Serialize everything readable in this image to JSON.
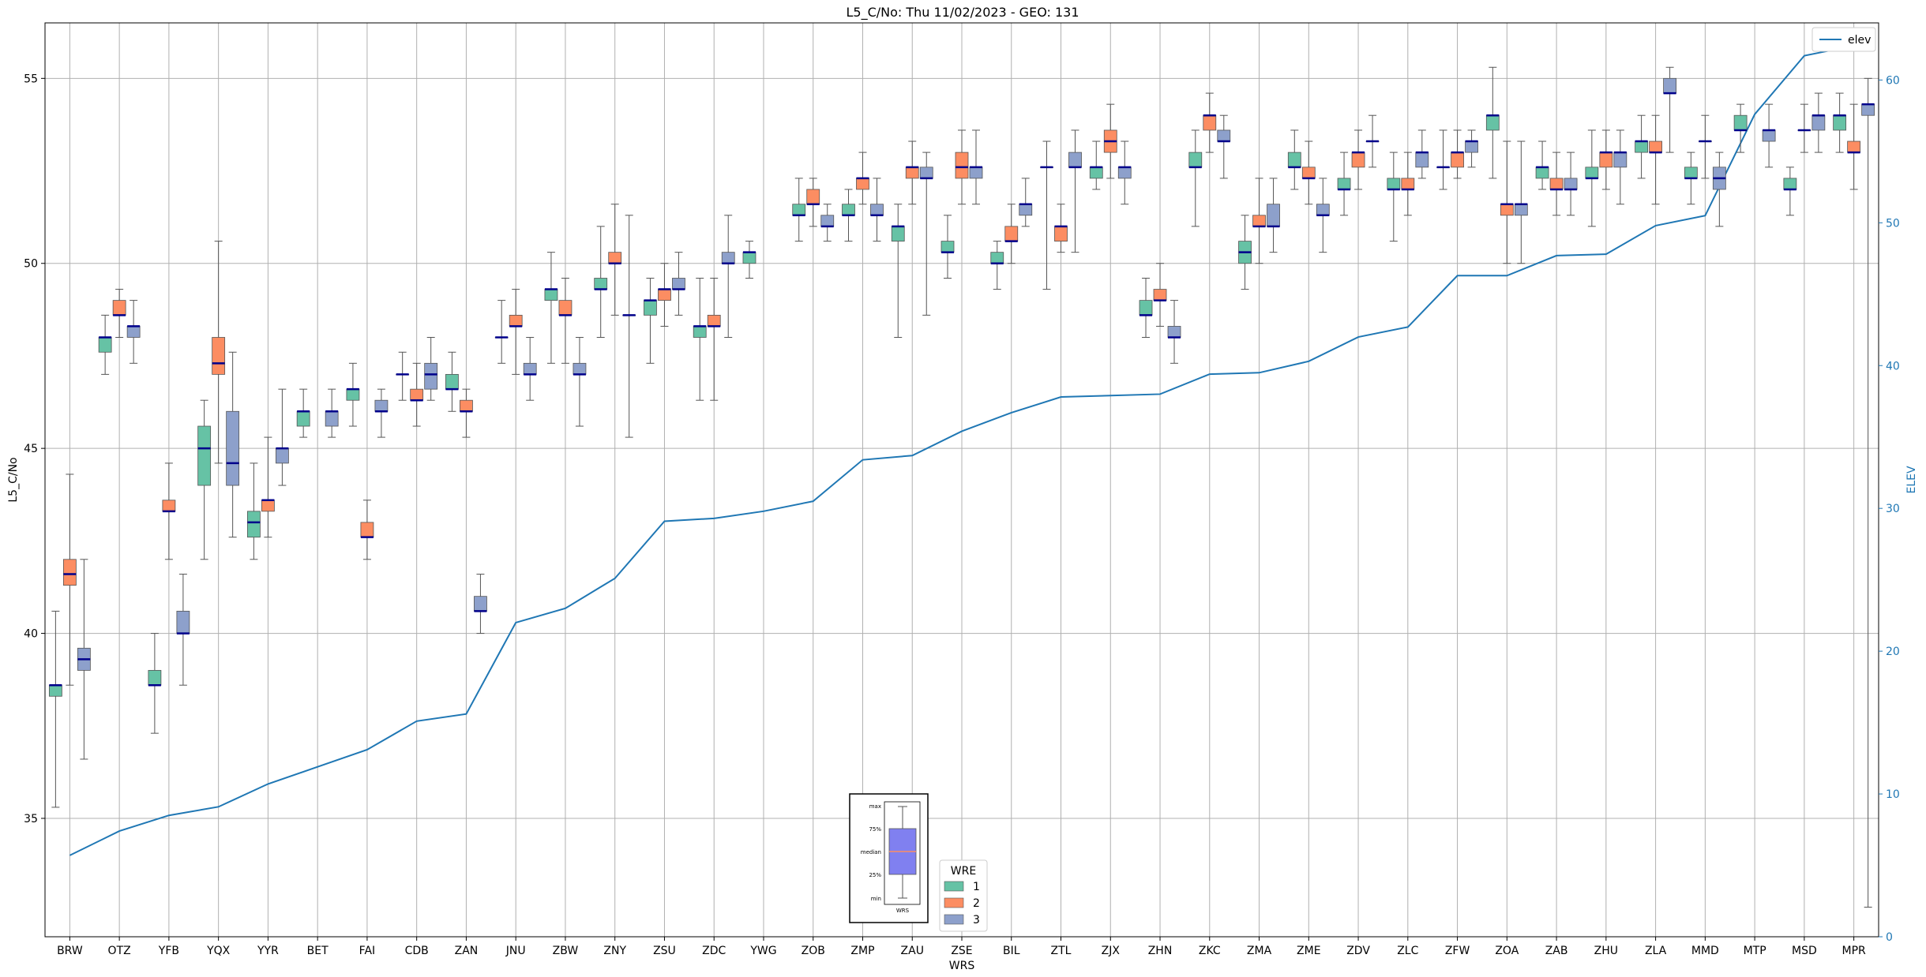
{
  "chart_data": {
    "type": "box",
    "title": "L5_C/No: Thu 11/02/2023 - GEO: 131",
    "xlabel": "WRS",
    "ylabel": "L5_C/No",
    "y2label": "ELEV",
    "ylim": [
      31.8,
      56.5
    ],
    "y2lim": [
      0,
      64
    ],
    "yticks": [
      35,
      40,
      45,
      50,
      55
    ],
    "y2ticks": [
      0,
      10,
      20,
      30,
      40,
      50,
      60
    ],
    "grid": true,
    "categories": [
      "BRW",
      "OTZ",
      "YFB",
      "YQX",
      "YYR",
      "BET",
      "FAI",
      "CDB",
      "ZAN",
      "JNU",
      "ZBW",
      "ZNY",
      "ZSU",
      "ZDC",
      "YWG",
      "ZOB",
      "ZMP",
      "ZAU",
      "ZSE",
      "BIL",
      "ZTL",
      "ZJX",
      "ZHN",
      "ZKC",
      "ZMA",
      "ZME",
      "ZDV",
      "ZLC",
      "ZFW",
      "ZOA",
      "ZAB",
      "ZHU",
      "ZLA",
      "MMD",
      "MTP",
      "MSD",
      "MPR"
    ],
    "legend": {
      "title": "WRE",
      "entries": [
        "1",
        "2",
        "3"
      ],
      "placement": "bottom-center"
    },
    "legend2": {
      "entries": [
        "elev"
      ],
      "placement": "top-right"
    },
    "colors": {
      "wre1": "#66c2a5",
      "wre2": "#fc8d62",
      "wre3": "#8da0cb",
      "elev": "#1f77b4",
      "median": "#00008b"
    },
    "series": [
      {
        "name": "1",
        "boxes": [
          [
            0,
            35.3,
            38.3,
            38.6,
            38.6,
            40.6
          ],
          [
            1,
            47.0,
            47.6,
            48.0,
            48.0,
            48.6
          ],
          [
            2,
            37.3,
            38.6,
            38.6,
            39.0,
            40.0
          ],
          [
            3,
            42.0,
            44.0,
            45.0,
            45.6,
            46.3
          ],
          [
            4,
            42.0,
            42.6,
            43.0,
            43.3,
            44.6
          ],
          [
            5,
            45.3,
            45.6,
            46.0,
            46.0,
            46.6
          ],
          [
            6,
            45.6,
            46.3,
            46.6,
            46.6,
            47.3
          ],
          [
            7,
            46.3,
            47.0,
            47.0,
            47.0,
            47.6
          ],
          [
            8,
            46.0,
            46.6,
            46.6,
            47.0,
            47.6
          ],
          [
            9,
            47.3,
            48.0,
            48.0,
            48.0,
            49.0
          ],
          [
            10,
            47.3,
            49.0,
            49.3,
            49.3,
            50.3
          ],
          [
            11,
            48.0,
            49.3,
            49.3,
            49.6,
            51.0
          ],
          [
            12,
            47.3,
            48.6,
            49.0,
            49.0,
            49.6
          ],
          [
            13,
            46.3,
            48.0,
            48.3,
            48.3,
            49.6
          ],
          [
            14,
            49.6,
            50.0,
            50.3,
            50.3,
            50.6
          ],
          [
            15,
            50.6,
            51.3,
            51.3,
            51.6,
            52.3
          ],
          [
            16,
            50.6,
            51.3,
            51.3,
            51.6,
            52.0
          ],
          [
            17,
            48.0,
            50.6,
            51.0,
            51.0,
            51.6
          ],
          [
            18,
            49.6,
            50.3,
            50.3,
            50.6,
            51.3
          ],
          [
            19,
            49.3,
            50.0,
            50.0,
            50.3,
            50.6
          ],
          [
            20,
            49.3,
            52.6,
            52.6,
            52.6,
            53.3
          ],
          [
            21,
            52.0,
            52.3,
            52.6,
            52.6,
            53.3
          ],
          [
            22,
            48.0,
            48.6,
            48.6,
            49.0,
            49.6
          ],
          [
            23,
            51.0,
            52.6,
            52.6,
            53.0,
            53.6
          ],
          [
            24,
            49.3,
            50.0,
            50.3,
            50.6,
            51.3
          ],
          [
            25,
            52.0,
            52.6,
            52.6,
            53.0,
            53.6
          ],
          [
            26,
            51.3,
            52.0,
            52.0,
            52.3,
            53.0
          ],
          [
            27,
            50.6,
            52.0,
            52.0,
            52.3,
            53.0
          ],
          [
            28,
            52.0,
            52.6,
            52.6,
            52.6,
            53.6
          ],
          [
            29,
            52.3,
            53.6,
            54.0,
            54.0,
            55.3
          ],
          [
            30,
            52.0,
            52.3,
            52.6,
            52.6,
            53.3
          ],
          [
            31,
            51.0,
            52.3,
            52.3,
            52.6,
            53.6
          ],
          [
            32,
            52.3,
            53.0,
            53.3,
            53.3,
            54.0
          ],
          [
            33,
            51.6,
            52.3,
            52.3,
            52.6,
            53.0
          ],
          [
            34,
            53.0,
            53.6,
            53.6,
            54.0,
            54.3
          ],
          [
            35,
            51.3,
            52.0,
            52.0,
            52.3,
            52.6
          ],
          [
            36,
            53.0,
            53.6,
            54.0,
            54.0,
            54.6
          ]
        ]
      },
      {
        "name": "2",
        "boxes": [
          [
            0,
            38.6,
            41.3,
            41.6,
            42.0,
            44.3
          ],
          [
            1,
            48.0,
            48.6,
            48.6,
            49.0,
            49.3
          ],
          [
            2,
            42.0,
            43.3,
            43.3,
            43.6,
            44.6
          ],
          [
            3,
            44.6,
            47.0,
            47.3,
            48.0,
            50.6
          ],
          [
            4,
            42.6,
            43.3,
            43.6,
            43.6,
            45.3
          ],
          [
            6,
            42.0,
            42.6,
            42.6,
            43.0,
            43.6
          ],
          [
            7,
            45.6,
            46.3,
            46.3,
            46.6,
            47.3
          ],
          [
            8,
            45.3,
            46.0,
            46.0,
            46.3,
            46.6
          ],
          [
            9,
            47.0,
            48.3,
            48.3,
            48.6,
            49.3
          ],
          [
            10,
            47.3,
            48.6,
            48.6,
            49.0,
            49.6
          ],
          [
            11,
            48.6,
            50.0,
            50.0,
            50.3,
            51.6
          ],
          [
            12,
            48.3,
            49.0,
            49.3,
            49.3,
            50.0
          ],
          [
            13,
            46.3,
            48.3,
            48.3,
            48.6,
            49.6
          ],
          [
            15,
            51.0,
            51.6,
            51.6,
            52.0,
            52.3
          ],
          [
            16,
            51.6,
            52.0,
            52.3,
            52.3,
            53.0
          ],
          [
            17,
            51.6,
            52.3,
            52.6,
            52.6,
            53.3
          ],
          [
            18,
            51.6,
            52.3,
            52.6,
            53.0,
            53.6
          ],
          [
            19,
            50.0,
            50.6,
            50.6,
            51.0,
            51.6
          ],
          [
            20,
            50.3,
            50.6,
            51.0,
            51.0,
            51.6
          ],
          [
            21,
            52.3,
            53.0,
            53.3,
            53.6,
            54.3
          ],
          [
            22,
            48.3,
            49.0,
            49.0,
            49.3,
            50.0
          ],
          [
            23,
            53.0,
            53.6,
            54.0,
            54.0,
            54.6
          ],
          [
            24,
            50.0,
            51.0,
            51.0,
            51.3,
            52.3
          ],
          [
            25,
            51.6,
            52.3,
            52.3,
            52.6,
            53.3
          ],
          [
            26,
            52.0,
            52.6,
            53.0,
            53.0,
            53.6
          ],
          [
            27,
            51.3,
            52.0,
            52.0,
            52.3,
            53.0
          ],
          [
            28,
            52.3,
            52.6,
            53.0,
            53.0,
            53.6
          ],
          [
            29,
            50.0,
            51.3,
            51.6,
            51.6,
            53.3
          ],
          [
            30,
            51.3,
            52.0,
            52.0,
            52.3,
            53.0
          ],
          [
            31,
            52.0,
            52.6,
            53.0,
            53.0,
            53.6
          ],
          [
            32,
            51.6,
            53.0,
            53.0,
            53.3,
            54.0
          ],
          [
            33,
            52.3,
            53.3,
            53.3,
            53.3,
            54.0
          ],
          [
            35,
            53.0,
            53.6,
            53.6,
            53.6,
            54.3
          ],
          [
            36,
            52.0,
            53.0,
            53.0,
            53.3,
            54.3
          ]
        ]
      },
      {
        "name": "3",
        "boxes": [
          [
            0,
            36.6,
            39.0,
            39.3,
            39.6,
            42.0
          ],
          [
            1,
            47.3,
            48.0,
            48.3,
            48.3,
            49.0
          ],
          [
            2,
            38.6,
            40.0,
            40.0,
            40.6,
            41.6
          ],
          [
            3,
            42.6,
            44.0,
            44.6,
            46.0,
            47.6
          ],
          [
            4,
            44.0,
            44.6,
            45.0,
            45.0,
            46.6
          ],
          [
            5,
            45.3,
            45.6,
            46.0,
            46.0,
            46.6
          ],
          [
            6,
            45.3,
            46.0,
            46.0,
            46.3,
            46.6
          ],
          [
            7,
            46.3,
            46.6,
            47.0,
            47.3,
            48.0
          ],
          [
            8,
            40.0,
            40.6,
            40.6,
            41.0,
            41.6
          ],
          [
            9,
            46.3,
            47.0,
            47.0,
            47.3,
            48.0
          ],
          [
            10,
            45.6,
            47.0,
            47.0,
            47.3,
            48.0
          ],
          [
            11,
            45.3,
            48.6,
            48.6,
            48.6,
            51.3
          ],
          [
            12,
            48.6,
            49.3,
            49.3,
            49.6,
            50.3
          ],
          [
            13,
            48.0,
            50.0,
            50.0,
            50.3,
            51.3
          ],
          [
            15,
            50.6,
            51.0,
            51.0,
            51.3,
            51.6
          ],
          [
            16,
            50.6,
            51.3,
            51.3,
            51.6,
            52.3
          ],
          [
            17,
            48.6,
            52.3,
            52.3,
            52.6,
            53.0
          ],
          [
            18,
            51.6,
            52.3,
            52.6,
            52.6,
            53.6
          ],
          [
            19,
            51.0,
            51.3,
            51.6,
            51.6,
            52.3
          ],
          [
            20,
            50.3,
            52.6,
            52.6,
            53.0,
            53.6
          ],
          [
            21,
            51.6,
            52.3,
            52.6,
            52.6,
            53.3
          ],
          [
            22,
            47.3,
            48.0,
            48.0,
            48.3,
            49.0
          ],
          [
            23,
            52.3,
            53.3,
            53.3,
            53.6,
            54.0
          ],
          [
            24,
            50.3,
            51.0,
            51.0,
            51.6,
            52.3
          ],
          [
            25,
            50.3,
            51.3,
            51.3,
            51.6,
            52.3
          ],
          [
            26,
            52.6,
            53.3,
            53.3,
            53.3,
            54.0
          ],
          [
            27,
            52.3,
            52.6,
            53.0,
            53.0,
            53.6
          ],
          [
            28,
            52.6,
            53.0,
            53.3,
            53.3,
            53.6
          ],
          [
            29,
            50.0,
            51.3,
            51.6,
            51.6,
            53.3
          ],
          [
            30,
            51.3,
            52.0,
            52.0,
            52.3,
            53.0
          ],
          [
            31,
            51.6,
            52.6,
            53.0,
            53.0,
            53.6
          ],
          [
            32,
            53.0,
            54.6,
            54.6,
            55.0,
            55.3
          ],
          [
            33,
            51.0,
            52.0,
            52.3,
            52.6,
            53.0
          ],
          [
            34,
            52.6,
            53.3,
            53.6,
            53.6,
            54.3
          ],
          [
            35,
            53.0,
            53.6,
            54.0,
            54.0,
            54.6
          ],
          [
            36,
            32.6,
            54.0,
            54.3,
            54.3,
            55.0
          ]
        ]
      }
    ],
    "elev": [
      5.7,
      7.4,
      8.5,
      9.1,
      10.7,
      11.9,
      13.1,
      15.1,
      15.6,
      22.0,
      23.0,
      25.1,
      29.1,
      29.3,
      29.8,
      30.5,
      33.4,
      33.7,
      35.4,
      36.7,
      37.8,
      37.9,
      38.0,
      39.4,
      39.5,
      40.3,
      42.0,
      42.7,
      46.3,
      46.3,
      47.7,
      47.8,
      49.8,
      50.5,
      57.6,
      61.7,
      62.4
    ],
    "inset": {
      "labels": [
        "max",
        "75%",
        "median",
        "25%",
        "min"
      ],
      "xlabel": "WRS"
    }
  }
}
